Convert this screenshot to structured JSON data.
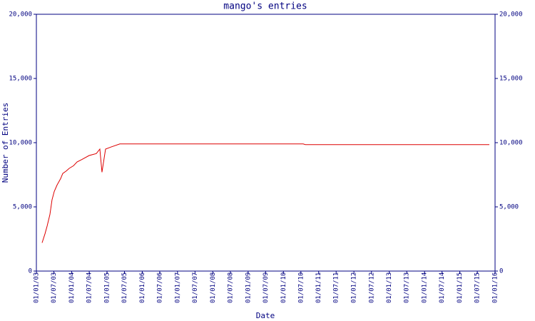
{
  "chart_data": {
    "type": "line",
    "title": "mango's entries",
    "x_label": "Date",
    "y_label": "Number of Entries",
    "x": [
      "2003-03-01",
      "2003-03-31",
      "2003-04-22",
      "2003-05-21",
      "2003-06-12",
      "2003-07-05",
      "2003-08-03",
      "2003-09-09",
      "2003-10-01",
      "2003-11-07",
      "2003-12-07",
      "2004-01-20",
      "2004-02-26",
      "2004-04-18",
      "2004-06-30",
      "2004-09-12",
      "2004-10-19",
      "2004-11-10",
      "2004-12-17",
      "2005-02-07",
      "2005-05-14",
      "2010-07-25",
      "2010-08-16",
      "2015-11-03"
    ],
    "series": [
      {
        "name": "entries",
        "color": "#dd0000",
        "values": [
          2200,
          2900,
          3500,
          4400,
          5550,
          6200,
          6700,
          7200,
          7600,
          7800,
          8000,
          8200,
          8500,
          8700,
          9000,
          9150,
          9500,
          7700,
          9500,
          9650,
          9900,
          9900,
          9850,
          9850
        ]
      }
    ],
    "xlim": [
      "2003-01-01",
      "2016-01-01"
    ],
    "xticks": [
      {
        "value": "2003-01-01",
        "label": "01/01/03"
      },
      {
        "value": "2003-07-01",
        "label": "01/07/03"
      },
      {
        "value": "2004-01-01",
        "label": "01/01/04"
      },
      {
        "value": "2004-07-01",
        "label": "01/07/04"
      },
      {
        "value": "2005-01-01",
        "label": "01/01/05"
      },
      {
        "value": "2005-07-01",
        "label": "01/07/05"
      },
      {
        "value": "2006-01-01",
        "label": "01/01/06"
      },
      {
        "value": "2006-07-01",
        "label": "01/07/06"
      },
      {
        "value": "2007-01-01",
        "label": "01/01/07"
      },
      {
        "value": "2007-07-01",
        "label": "01/07/07"
      },
      {
        "value": "2008-01-01",
        "label": "01/01/08"
      },
      {
        "value": "2008-07-01",
        "label": "01/07/08"
      },
      {
        "value": "2009-01-01",
        "label": "01/01/09"
      },
      {
        "value": "2009-07-01",
        "label": "01/07/09"
      },
      {
        "value": "2010-01-01",
        "label": "01/01/10"
      },
      {
        "value": "2010-07-01",
        "label": "01/07/10"
      },
      {
        "value": "2011-01-01",
        "label": "01/01/11"
      },
      {
        "value": "2011-07-01",
        "label": "01/07/11"
      },
      {
        "value": "2012-01-01",
        "label": "01/01/12"
      },
      {
        "value": "2012-07-01",
        "label": "01/07/12"
      },
      {
        "value": "2013-01-01",
        "label": "01/01/13"
      },
      {
        "value": "2013-07-01",
        "label": "01/07/13"
      },
      {
        "value": "2014-01-01",
        "label": "01/01/14"
      },
      {
        "value": "2014-07-01",
        "label": "01/07/14"
      },
      {
        "value": "2015-01-01",
        "label": "01/01/15"
      },
      {
        "value": "2015-07-01",
        "label": "01/07/15"
      },
      {
        "value": "2016-01-01",
        "label": "01/01/16"
      }
    ],
    "ylim": [
      0,
      20000
    ],
    "yticks": [
      0,
      {
        "value": 5000,
        "label": "5,000"
      },
      {
        "value": 10000,
        "label": "10,000"
      },
      {
        "value": 15000,
        "label": "15,000"
      },
      {
        "value": 20000,
        "label": "20,000"
      }
    ],
    "axis_color": "#000080"
  }
}
